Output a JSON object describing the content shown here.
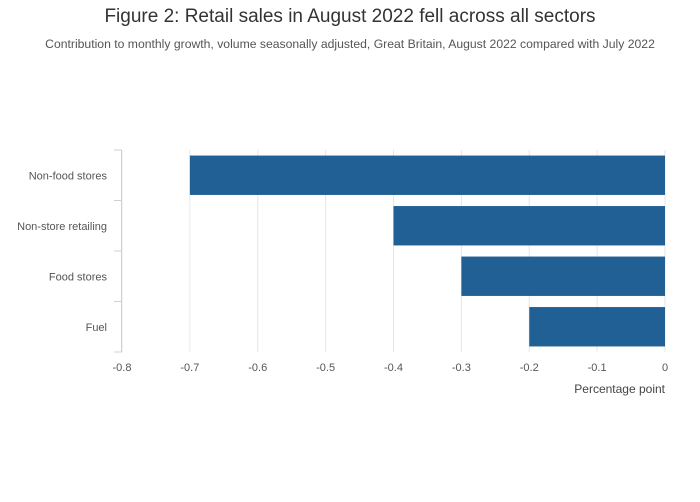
{
  "chart_data": {
    "type": "bar",
    "orientation": "horizontal",
    "title": "Figure 2: Retail sales in August 2022 fell across all sectors",
    "subtitle": "Contribution to monthly growth, volume seasonally adjusted, Great Britain, August 2022 compared with July 2022",
    "categories": [
      "Non-food stores",
      "Non-store retailing",
      "Food stores",
      "Fuel"
    ],
    "values": [
      -0.7,
      -0.4,
      -0.3,
      -0.2
    ],
    "xlabel": "Percentage point",
    "ylabel": "",
    "xlim": [
      -0.8,
      0
    ],
    "xticks": [
      -0.8,
      -0.7,
      -0.6,
      -0.5,
      -0.4,
      -0.3,
      -0.2,
      -0.1,
      0
    ],
    "xtick_labels": [
      "-0.8",
      "-0.7",
      "-0.6",
      "-0.5",
      "-0.4",
      "-0.3",
      "-0.2",
      "-0.1",
      "0"
    ],
    "bar_color": "#206095",
    "grid": true
  }
}
